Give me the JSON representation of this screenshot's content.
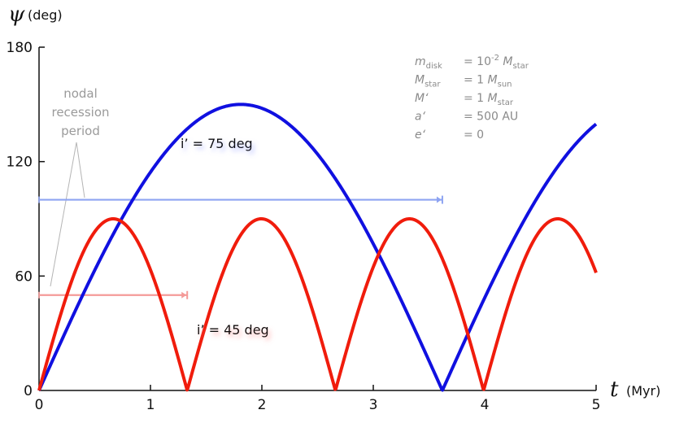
{
  "chart_data": {
    "type": "line",
    "xlabel_symbol": "t",
    "xlabel_unit": "(Myr)",
    "ylabel_symbol": "ψ",
    "ylabel_unit": "(deg)",
    "xlim": [
      0,
      5
    ],
    "ylim": [
      0,
      180
    ],
    "xticks": [
      "0",
      "1",
      "2",
      "3",
      "4",
      "5"
    ],
    "yticks": [
      "0",
      "60",
      "120",
      "180"
    ],
    "grid": false,
    "series": [
      {
        "name": "i’ = 75 deg",
        "color": "#1010e0",
        "label_color": "#2020dd",
        "shape": "arches",
        "amplitude": 150,
        "period": 3.62,
        "x": [
          0,
          0.25,
          0.5,
          0.75,
          1.0,
          1.25,
          1.5,
          1.81,
          2.0,
          2.25,
          2.5,
          2.75,
          3.0,
          3.25,
          3.5,
          3.62,
          3.75,
          4.0,
          4.25,
          4.5,
          4.75,
          5.0
        ],
        "y": [
          0,
          31.9,
          62.3,
          89.7,
          112.7,
          130.7,
          143.1,
          150,
          148.4,
          138.1,
          121.6,
          100.2,
          75.0,
          47.4,
          15.6,
          0,
          16.2,
          47.0,
          76.5,
          101.4,
          124.1,
          145
        ]
      },
      {
        "name": "i’ = 45 deg",
        "color": "#f01c0c",
        "label_color": "#ee2222",
        "shape": "arches",
        "amplitude": 90,
        "period": 1.33,
        "x": [
          0,
          0.2,
          0.4,
          0.665,
          0.9,
          1.1,
          1.33,
          1.55,
          1.8,
          2.0,
          2.2,
          2.45,
          2.66,
          2.9,
          3.1,
          3.32,
          3.55,
          3.75,
          3.99,
          4.2,
          4.4,
          4.65,
          4.85,
          5.0
        ],
        "y": [
          0,
          40.9,
          72.4,
          90,
          77.7,
          45.8,
          0,
          43.6,
          78.5,
          89.7,
          81.3,
          40.3,
          0,
          44.7,
          78.7,
          90,
          76.0,
          43.4,
          0,
          40.5,
          73.4,
          90,
          81.6,
          71.0
        ]
      }
    ],
    "bars": [
      {
        "series": "i’ = 75 deg",
        "y": 100,
        "x_start": 0,
        "x_end": 3.62,
        "color": "#8ea4f2"
      },
      {
        "series": "i’ = 45 deg",
        "y": 50,
        "x_start": 0,
        "x_end": 1.33,
        "color": "#f49a98"
      }
    ],
    "annotation": [
      "nodal",
      "recession",
      "period"
    ],
    "params": [
      {
        "sym": "m",
        "sub": "disk",
        "eq": "= 10",
        "sup": "-2",
        "rest_sym": "M",
        "rest_sub": "star"
      },
      {
        "sym": "M",
        "sub": "star",
        "eq": "= 1",
        "sup": "",
        "rest_sym": "M",
        "rest_sub": "sun"
      },
      {
        "sym": "M‘",
        "sub": "",
        "eq": "= 1",
        "sup": "",
        "rest_sym": "M",
        "rest_sub": "star"
      },
      {
        "sym": "a‘",
        "sub": "",
        "eq": "= 500 AU",
        "sup": "",
        "rest_sym": "",
        "rest_sub": ""
      },
      {
        "sym": "e‘",
        "sub": "",
        "eq": "= 0",
        "sup": "",
        "rest_sym": "",
        "rest_sub": ""
      }
    ]
  }
}
